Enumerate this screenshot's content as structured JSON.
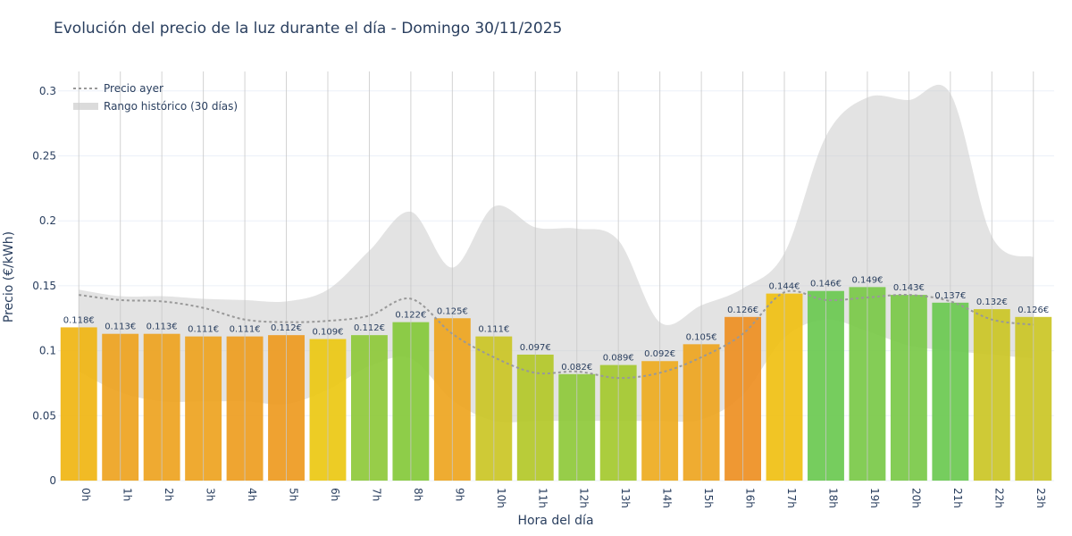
{
  "title": "Evolución del precio de la luz durante el día - Domingo 30/11/2025",
  "chart_data": {
    "type": "bar",
    "title": "Evolución del precio de la luz durante el día - Domingo 30/11/2025",
    "xlabel": "Hora del día",
    "ylabel": "Precio (€/kWh)",
    "ylim": [
      0,
      0.315
    ],
    "yticks": [
      0,
      0.05,
      0.1,
      0.15,
      0.2,
      0.25,
      0.3
    ],
    "ytick_labels": [
      "0",
      "0.05",
      "0.1",
      "0.15",
      "0.2",
      "0.25",
      "0.3"
    ],
    "grid": true,
    "legend_position": "top-left",
    "categories": [
      "0h",
      "1h",
      "2h",
      "3h",
      "4h",
      "5h",
      "6h",
      "7h",
      "8h",
      "9h",
      "10h",
      "11h",
      "12h",
      "13h",
      "14h",
      "15h",
      "16h",
      "17h",
      "18h",
      "19h",
      "20h",
      "21h",
      "22h",
      "23h"
    ],
    "series": [
      {
        "values": [
          0.118,
          0.113,
          0.113,
          0.111,
          0.111,
          0.112,
          0.109,
          0.112,
          0.122,
          0.125,
          0.111,
          0.097,
          0.082,
          0.089,
          0.092,
          0.105,
          0.126,
          0.144,
          0.146,
          0.149,
          0.143,
          0.137,
          0.132,
          0.126
        ],
        "labels": [
          "0.118€",
          "0.113€",
          "0.113€",
          "0.111€",
          "0.111€",
          "0.112€",
          "0.109€",
          "0.112€",
          "0.122€",
          "0.125€",
          "0.111€",
          "0.097€",
          "0.082€",
          "0.089€",
          "0.092€",
          "0.105€",
          "0.126€",
          "0.144€",
          "0.146€",
          "0.149€",
          "0.143€",
          "0.137€",
          "0.132€",
          "0.126€"
        ],
        "colors": [
          "#f0b512",
          "#eea320",
          "#eea320",
          "#eea320",
          "#ee9d20",
          "#ee9a20",
          "#ecc812",
          "#8ec93a",
          "#84c93a",
          "#eea520",
          "#cbc625",
          "#b3c828",
          "#8ec93a",
          "#a4c92e",
          "#eeab20",
          "#eea520",
          "#ee8f22",
          "#f0c012",
          "#6ac950",
          "#7ac948",
          "#7ac948",
          "#6ac950",
          "#cbc625",
          "#cbc625"
        ]
      },
      {
        "name": "Precio ayer",
        "values": [
          0.143,
          0.139,
          0.138,
          0.133,
          0.124,
          0.122,
          0.123,
          0.127,
          0.14,
          0.113,
          0.095,
          0.083,
          0.084,
          0.079,
          0.083,
          0.095,
          0.113,
          0.145,
          0.139,
          0.141,
          0.143,
          0.138,
          0.124,
          0.12
        ],
        "color": "#999999"
      },
      {
        "name": "Rango histórico (30 días)",
        "upper": [
          0.147,
          0.142,
          0.142,
          0.14,
          0.139,
          0.138,
          0.147,
          0.177,
          0.207,
          0.164,
          0.211,
          0.195,
          0.194,
          0.185,
          0.122,
          0.135,
          0.148,
          0.175,
          0.265,
          0.295,
          0.293,
          0.298,
          0.188,
          0.172
        ],
        "lower": [
          0.084,
          0.068,
          0.061,
          0.061,
          0.061,
          0.059,
          0.07,
          0.088,
          0.094,
          0.062,
          0.046,
          0.046,
          0.046,
          0.046,
          0.046,
          0.047,
          0.066,
          0.11,
          0.124,
          0.115,
          0.104,
          0.1,
          0.097,
          0.094
        ],
        "color": "#cccccc"
      }
    ]
  }
}
